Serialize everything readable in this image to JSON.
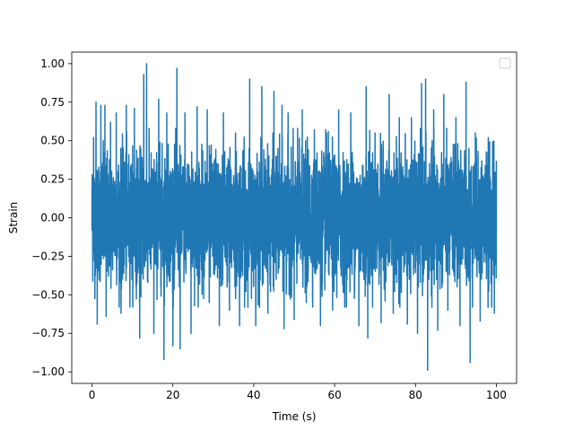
{
  "chart_data": {
    "type": "line",
    "title": "",
    "xlabel": "Time (s)",
    "ylabel": "Strain",
    "xlim": [
      -5,
      105
    ],
    "ylim": [
      -1.075,
      1.075
    ],
    "xticks": [
      0,
      20,
      40,
      60,
      80,
      100
    ],
    "xtick_labels": [
      "0",
      "20",
      "40",
      "60",
      "80",
      "100"
    ],
    "yticks": [
      -1.0,
      -0.75,
      -0.5,
      -0.25,
      0.0,
      0.25,
      0.5,
      0.75,
      1.0
    ],
    "ytick_labels": [
      "−1.00",
      "−0.75",
      "−0.50",
      "−0.25",
      "0.00",
      "0.25",
      "0.50",
      "0.75",
      "1.00"
    ],
    "grid": false,
    "legend": {
      "placement": "top-right",
      "entries": []
    },
    "series": [
      {
        "color": "#1f77b4",
        "x_range": [
          0,
          100
        ],
        "peaks": [
          {
            "x": 0.4,
            "y": 0.52
          },
          {
            "x": 1.0,
            "y": 0.75
          },
          {
            "x": 1.3,
            "y": -0.69
          },
          {
            "x": 2.2,
            "y": 0.73
          },
          {
            "x": 3.2,
            "y": 0.73
          },
          {
            "x": 3.5,
            "y": -0.64
          },
          {
            "x": 4.6,
            "y": 0.62
          },
          {
            "x": 6.0,
            "y": 0.68
          },
          {
            "x": 7.2,
            "y": -0.62
          },
          {
            "x": 8.5,
            "y": 0.73
          },
          {
            "x": 10.5,
            "y": 0.71
          },
          {
            "x": 11.8,
            "y": -0.78
          },
          {
            "x": 12.8,
            "y": 0.93
          },
          {
            "x": 13.5,
            "y": 1.0
          },
          {
            "x": 15.3,
            "y": -0.75
          },
          {
            "x": 16.5,
            "y": 0.77
          },
          {
            "x": 17.8,
            "y": -0.92
          },
          {
            "x": 18.5,
            "y": 0.68
          },
          {
            "x": 20.0,
            "y": -0.83
          },
          {
            "x": 21.0,
            "y": 0.97
          },
          {
            "x": 21.8,
            "y": -0.85
          },
          {
            "x": 23.0,
            "y": 0.68
          },
          {
            "x": 24.5,
            "y": -0.75
          },
          {
            "x": 26.0,
            "y": 0.72
          },
          {
            "x": 28.5,
            "y": 0.7
          },
          {
            "x": 29.0,
            "y": -0.55
          },
          {
            "x": 31.5,
            "y": -0.7
          },
          {
            "x": 32.5,
            "y": 0.68
          },
          {
            "x": 34.0,
            "y": -0.6
          },
          {
            "x": 35.5,
            "y": 0.55
          },
          {
            "x": 36.5,
            "y": -0.7
          },
          {
            "x": 39.0,
            "y": 0.9
          },
          {
            "x": 40.5,
            "y": -0.7
          },
          {
            "x": 42.0,
            "y": 0.85
          },
          {
            "x": 43.5,
            "y": -0.62
          },
          {
            "x": 45.0,
            "y": 0.82
          },
          {
            "x": 47.0,
            "y": 0.73
          },
          {
            "x": 47.5,
            "y": -0.72
          },
          {
            "x": 48.5,
            "y": 0.68
          },
          {
            "x": 50.0,
            "y": -0.66
          },
          {
            "x": 52.0,
            "y": 0.7
          },
          {
            "x": 53.0,
            "y": -0.55
          },
          {
            "x": 55.0,
            "y": 0.57
          },
          {
            "x": 56.5,
            "y": -0.7
          },
          {
            "x": 58.0,
            "y": 0.55
          },
          {
            "x": 59.5,
            "y": -0.6
          },
          {
            "x": 61.0,
            "y": 0.7
          },
          {
            "x": 62.5,
            "y": -0.58
          },
          {
            "x": 64.0,
            "y": 0.68
          },
          {
            "x": 66.0,
            "y": -0.7
          },
          {
            "x": 67.8,
            "y": 0.85
          },
          {
            "x": 68.2,
            "y": -0.78
          },
          {
            "x": 70.0,
            "y": 0.55
          },
          {
            "x": 71.5,
            "y": -0.68
          },
          {
            "x": 73.5,
            "y": 0.8
          },
          {
            "x": 74.5,
            "y": -0.62
          },
          {
            "x": 76.0,
            "y": 0.65
          },
          {
            "x": 78.0,
            "y": -0.69
          },
          {
            "x": 79.0,
            "y": 0.65
          },
          {
            "x": 80.5,
            "y": -0.75
          },
          {
            "x": 81.5,
            "y": 0.87
          },
          {
            "x": 82.5,
            "y": 0.9
          },
          {
            "x": 83.0,
            "y": -0.99
          },
          {
            "x": 84.5,
            "y": 0.7
          },
          {
            "x": 85.5,
            "y": -0.73
          },
          {
            "x": 87.0,
            "y": 0.8
          },
          {
            "x": 88.0,
            "y": -0.6
          },
          {
            "x": 90.0,
            "y": 0.65
          },
          {
            "x": 91.0,
            "y": -0.7
          },
          {
            "x": 92.5,
            "y": 0.88
          },
          {
            "x": 93.5,
            "y": -0.94
          },
          {
            "x": 94.8,
            "y": 0.55
          },
          {
            "x": 96.0,
            "y": -0.67
          },
          {
            "x": 98.0,
            "y": 0.52
          },
          {
            "x": 99.5,
            "y": -0.62
          },
          {
            "x": 100.0,
            "y": 0.37
          }
        ]
      }
    ]
  }
}
